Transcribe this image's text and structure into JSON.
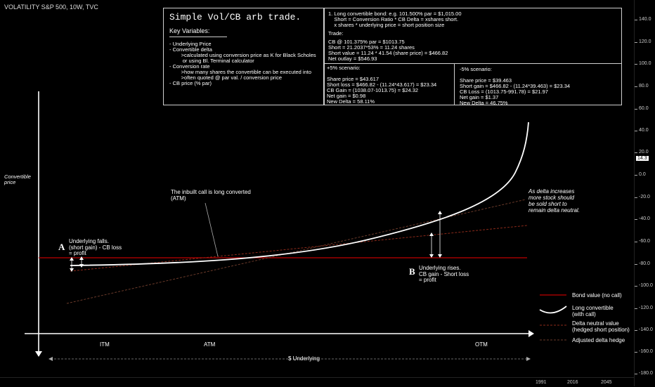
{
  "header": {
    "title": "VOLATILITY S&P 500, 10W, TVC"
  },
  "right_axis": {
    "ticks": [
      "140.0",
      "120.0",
      "100.0",
      "80.0",
      "60.0",
      "40.0",
      "20.0",
      "0.0",
      "-20.0",
      "-40.0",
      "-60.0",
      "-80.0",
      "-100.0",
      "-120.0",
      "-140.0",
      "-160.0",
      "-180.0"
    ],
    "highlight": "14.3"
  },
  "bottom_axis": {
    "years": [
      "1991",
      "2016",
      "2045"
    ]
  },
  "info_box": {
    "title": "Simple Vol/CB arb trade.",
    "key_heading": "Key Variables:",
    "variables": "- Underlying Price\n- Convertible delta\n        >calculated using conversion price as K for Black Scholes\n         or using Bl. Terminal calculator\n- Conversion rate\n        >how many shares the convertible can be executed into\n        >often quoted @ par val. / conversion price\n- CB price (% par)"
  },
  "trade_box": {
    "intro": "1. Long convertible bond: e.g. 101.500% par = $1,015.00\n    Short = Conversion Ratio * CB Delta = xshares short.\n    x shares * underlying price = short position size",
    "trade_heading": "Trade:",
    "trade_body": "CB @ 101.375% par = $1013.75\nShort = 21.2037*53% = 11.24 shares\nShort value = 11.24 * 41.54 (share price) = $466.82\nNet outlay = $546.93",
    "plus": "+5% scenario:\n\nShare price = $43.617\nShort loss = $466.82 - (11.24*43.617) = $23.34\nCB Gain = (1038.07-1013.75) = $24.32\nNet gain = $0.98\nNew Delta = 58.11%",
    "minus": "-5% scenario:\n\nShare price = $39.463\nShort gain = $466.82 - (11.24*39.463) = $23.34\nCB Loss = (1013.75-991.78) = $21.97\nNet gain = $1.37\nNew Delta = 46.75%"
  },
  "annotations": {
    "y_label": "Convertible\nprice",
    "inbuilt_call": "The inbuilt call is long converted\n(ATM)",
    "delta_note": "As delta increases\nmore stock should\nbe sold short to\nremain delta neutral.",
    "a_letter": "A",
    "a_text": "Underlying falls.\n(short gain) - CB loss\n= profit",
    "b_letter": "B",
    "b_text": "Underlying rises.\nCB gain - Short loss\n= profit",
    "x_underlying": "$ Underlying",
    "itm": "ITM",
    "atm": "ATM",
    "otm": "OTM"
  },
  "legend": [
    {
      "label": "Bond value (no call)",
      "color": "#c00000"
    },
    {
      "label": "Long convertible\n(with call)",
      "color": "#ffffff"
    },
    {
      "label": "Delta neutral value\n(hedged short position)",
      "color": "#8b2a1a"
    },
    {
      "label": "Adjusted delta hedge",
      "color": "#6a3a2a"
    }
  ],
  "chart_data": {
    "type": "line",
    "title": "Simple Vol/CB arb trade.",
    "xlabel": "$ Underlying",
    "ylabel": "Convertible price",
    "x_regions": [
      "ITM",
      "ATM",
      "OTM"
    ],
    "series": [
      {
        "name": "Bond value (no call)",
        "shape": "flat"
      },
      {
        "name": "Long convertible (with call)",
        "shape": "convex"
      },
      {
        "name": "Delta neutral value (hedged short position)",
        "shape": "linear"
      },
      {
        "name": "Adjusted delta hedge",
        "shape": "linear-steeper"
      }
    ]
  }
}
